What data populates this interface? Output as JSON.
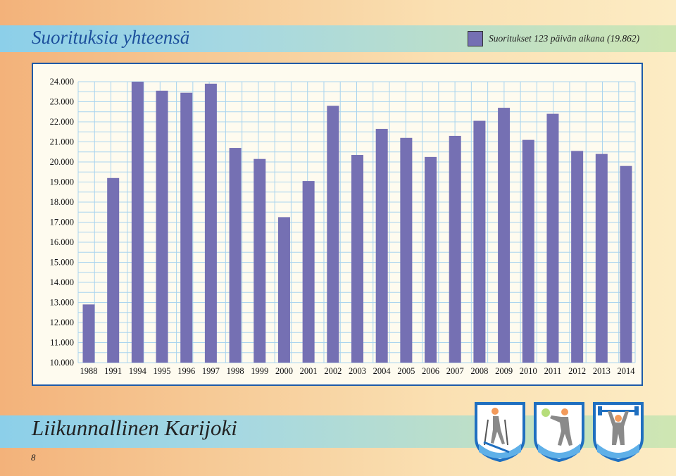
{
  "page": {
    "title": "Suorituksia yhteensä",
    "footer_title": "Liikunnallinen Karijoki",
    "page_number": "8"
  },
  "legend": {
    "label": "Suoritukset 123 päivän aikana (19.862)",
    "color": "#7570b3"
  },
  "icons": [
    "skier-icon",
    "golfer-icon",
    "weightlifter-icon"
  ],
  "chart_data": {
    "type": "bar",
    "title": "Suorituksia yhteensä",
    "xlabel": "",
    "ylabel": "",
    "ylim": [
      10000,
      24000
    ],
    "grid": true,
    "legend_position": "top-right",
    "bar_color": "#7570b3",
    "y_ticks": [
      "10.000",
      "11.000",
      "12.000",
      "13.000",
      "14.000",
      "15.000",
      "16.000",
      "17.000",
      "18.000",
      "19.000",
      "20.000",
      "21.000",
      "22.000",
      "23.000",
      "24.000"
    ],
    "categories": [
      "1988",
      "1991",
      "1994",
      "1995",
      "1996",
      "1997",
      "1998",
      "1999",
      "2000",
      "2001",
      "2002",
      "2003",
      "2004",
      "2005",
      "2006",
      "2007",
      "2008",
      "2009",
      "2010",
      "2011",
      "2012",
      "2013",
      "2014"
    ],
    "series": [
      {
        "name": "Suoritukset 123 päivän aikana (19.862)",
        "values": [
          12900,
          19200,
          24000,
          23550,
          23450,
          23900,
          20700,
          20150,
          17250,
          19050,
          22800,
          20350,
          21650,
          21200,
          20250,
          21300,
          22050,
          22700,
          21100,
          22400,
          20550,
          20400,
          19800
        ]
      }
    ]
  }
}
